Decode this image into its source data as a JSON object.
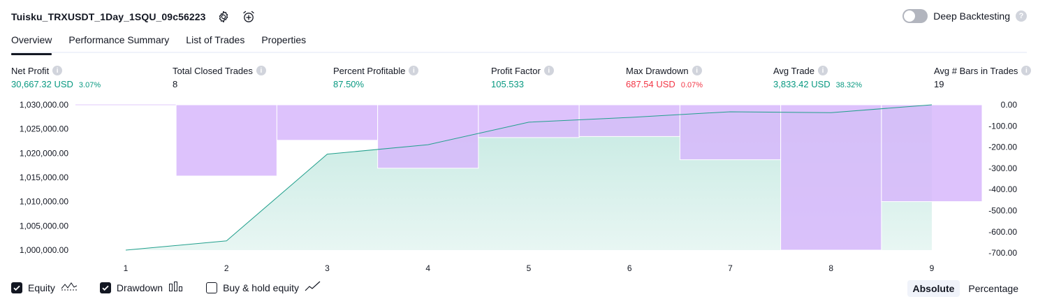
{
  "header": {
    "strategy_name": "Tuisku_TRXUSDT_1Day_1SQU_09c56223",
    "settings_icon": "gear-icon",
    "alert_icon": "alarm-clock-plus-icon",
    "deep_backtesting_label": "Deep Backtesting",
    "deep_backtesting_enabled": false,
    "help_symbol": "?"
  },
  "tabs": [
    {
      "label": "Overview",
      "active": true
    },
    {
      "label": "Performance Summary",
      "active": false
    },
    {
      "label": "List of Trades",
      "active": false
    },
    {
      "label": "Properties",
      "active": false
    }
  ],
  "metrics": {
    "net_profit": {
      "label": "Net Profit",
      "value": "30,667.32 USD",
      "pct": "3.07%"
    },
    "total_closed_trades": {
      "label": "Total Closed Trades",
      "value": "8"
    },
    "percent_profitable": {
      "label": "Percent Profitable",
      "value": "87.50%"
    },
    "profit_factor": {
      "label": "Profit Factor",
      "value": "105.533"
    },
    "max_drawdown": {
      "label": "Max Drawdown",
      "value": "687.54 USD",
      "pct": "0.07%"
    },
    "avg_trade": {
      "label": "Avg Trade",
      "value": "3,833.42 USD",
      "pct": "38.32%"
    },
    "avg_bars": {
      "label": "Avg # Bars in Trades",
      "value": "19"
    },
    "info_symbol": "i"
  },
  "chart_data": {
    "type": "area",
    "x": [
      1,
      2,
      3,
      4,
      5,
      6,
      7,
      8,
      9
    ],
    "x_tick_labels": [
      "1",
      "2",
      "3",
      "4",
      "5",
      "6",
      "7",
      "8",
      "9"
    ],
    "left_axis": {
      "ticks": [
        "1,030,000.00",
        "1,025,000.00",
        "1,020,000.00",
        "1,015,000.00",
        "1,010,000.00",
        "1,005,000.00",
        "1,000,000.00"
      ],
      "range": [
        1000000,
        1030667
      ]
    },
    "right_axis": {
      "ticks": [
        "0.00",
        "-100.00",
        "-200.00",
        "-300.00",
        "-400.00",
        "-500.00",
        "-600.00",
        "-700.00"
      ],
      "range": [
        -687.54,
        0
      ]
    },
    "series": [
      {
        "name": "Equity",
        "type": "area",
        "axis": "left",
        "values": [
          1000000,
          1001950,
          1020250,
          1022250,
          1027000,
          1028000,
          1029200,
          1029000,
          1030667
        ]
      },
      {
        "name": "Drawdown",
        "type": "bar",
        "axis": "right",
        "values": [
          0,
          -337,
          -168,
          -300,
          -155,
          -150,
          -260,
          -687.54,
          -458
        ]
      }
    ],
    "colors": {
      "equity_line": "#22a08d",
      "equity_fill_top": "#c4e9e1",
      "equity_fill_bottom": "#e8f6f3",
      "drawdown_bar": "#d7b7fb"
    }
  },
  "legend": {
    "items": [
      {
        "label": "Equity",
        "checked": true,
        "icon": "equity-line-icon"
      },
      {
        "label": "Drawdown",
        "checked": true,
        "icon": "drawdown-bars-icon"
      },
      {
        "label": "Buy & hold equity",
        "checked": false,
        "icon": "buy-hold-line-icon"
      }
    ]
  },
  "display_mode": {
    "options": [
      "Absolute",
      "Percentage"
    ],
    "selected": "Absolute"
  }
}
